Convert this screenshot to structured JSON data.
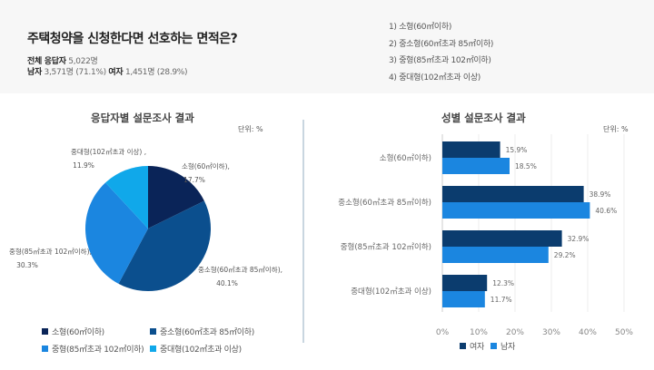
{
  "header": {
    "title": "주택청약을 신청한다면 선호하는 면적은?",
    "total_label": "전체 응답자",
    "total_value": "5,022명",
    "male_label": "남자",
    "male_value": "3,571명 (71.1%)",
    "female_label": "여자",
    "female_value": "1,451명 (28.9%)",
    "categories": [
      "1) 소형(60㎡이하)",
      "2) 중소형(60㎡초과 85㎡이하)",
      "3) 중형(85㎡초과 102㎡이하)",
      "4) 중대형(102㎡초과 이상)"
    ]
  },
  "chart_data": [
    {
      "type": "pie",
      "title": "응답자별 설문조사 결과",
      "unit": "단위: %",
      "categories": [
        "소형(60㎡이하)",
        "중소형(60㎡초과 85㎡이하)",
        "중형(85㎡초과 102㎡이하)",
        "중대형(102㎡초과 이상)"
      ],
      "values": [
        17.7,
        40.1,
        30.3,
        11.9
      ],
      "data_labels": [
        [
          "소형(60㎡이하),",
          "17.7%"
        ],
        [
          "중소형(60㎡초과 85㎡이하),",
          "40.1%"
        ],
        [
          "중형(85㎡초과 102㎡이하),",
          "30.3%"
        ],
        [
          "중대형(102㎡초과 이상) ,",
          "11.9%"
        ]
      ],
      "colors": [
        "#0a2458",
        "#0b4f8e",
        "#1b86e0",
        "#10a8ea"
      ],
      "legend": "bottom"
    },
    {
      "type": "bar",
      "orientation": "horizontal",
      "title": "성별 설문조사 결과",
      "unit": "단위: %",
      "categories": [
        "소형(60㎡이하)",
        "중소형(60㎡초과 85㎡이하)",
        "중형(85㎡초과 102㎡이하)",
        "중대형(102㎡초과 이상)"
      ],
      "series": [
        {
          "name": "여자",
          "values": [
            15.9,
            38.9,
            32.9,
            12.3
          ],
          "color": "#0b3c6e"
        },
        {
          "name": "남자",
          "values": [
            18.5,
            40.6,
            29.2,
            11.7
          ],
          "color": "#1b86e0"
        }
      ],
      "xlim": [
        0,
        50
      ],
      "xticks": [
        "0%",
        "10%",
        "20%",
        "30%",
        "40%",
        "50%"
      ],
      "grid": true,
      "legend": "bottom"
    }
  ]
}
